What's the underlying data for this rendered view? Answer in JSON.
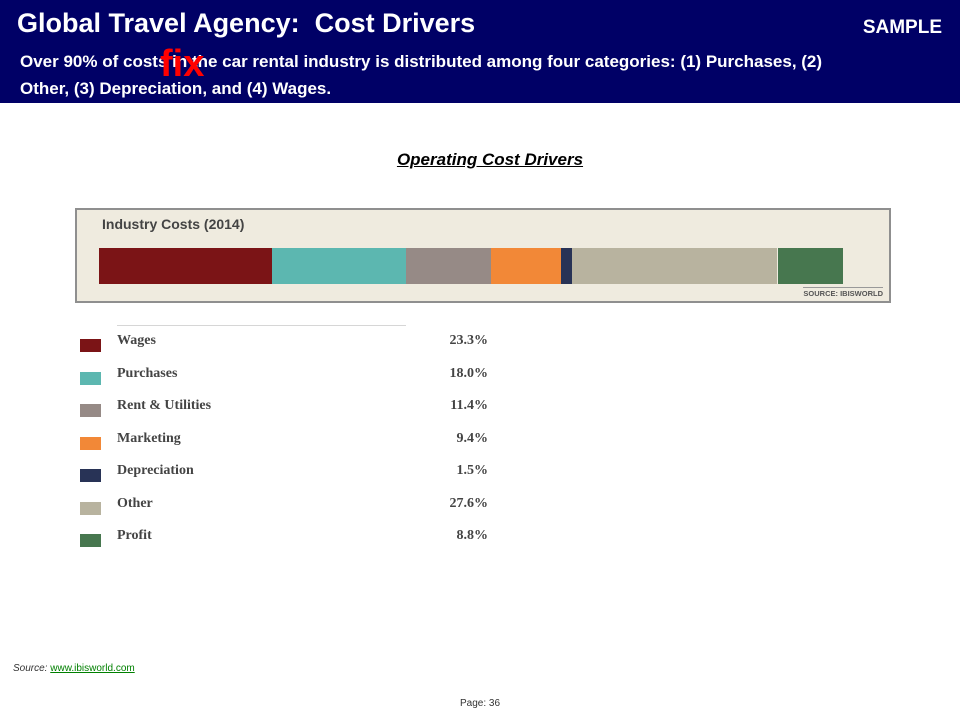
{
  "header": {
    "title": "Global Travel Agency:  Cost Drivers",
    "sample": "SAMPLE",
    "subtitle": "Over 90% of costs in the  car rental industry is distributed among four categories:  (1) Purchases, (2) Other, (3) Depreciation, and (4) Wages.",
    "stamp": "fix"
  },
  "section_title": "Operating Cost Drivers",
  "chart_data": {
    "type": "bar",
    "title": "Industry Costs (2014)",
    "source_note": "SOURCE: IBISWORLD",
    "categories": [
      "Wages",
      "Purchases",
      "Rent & Utilities",
      "Marketing",
      "Depreciation",
      "Other",
      "Profit"
    ],
    "values": [
      23.3,
      18.0,
      11.4,
      9.4,
      1.5,
      27.6,
      8.8
    ],
    "value_labels": [
      "23.3%",
      "18.0%",
      "11.4%",
      "9.4%",
      "1.5%",
      "27.6%",
      "8.8%"
    ],
    "colors": [
      "#7b1416",
      "#5cb7b0",
      "#968a86",
      "#f28837",
      "#283356",
      "#b8b39f",
      "#47774f"
    ],
    "stacked": true,
    "orientation": "horizontal"
  },
  "footer": {
    "source_label": "Source: ",
    "source_link": "www.ibisworld.com",
    "page": "Page: 36"
  }
}
